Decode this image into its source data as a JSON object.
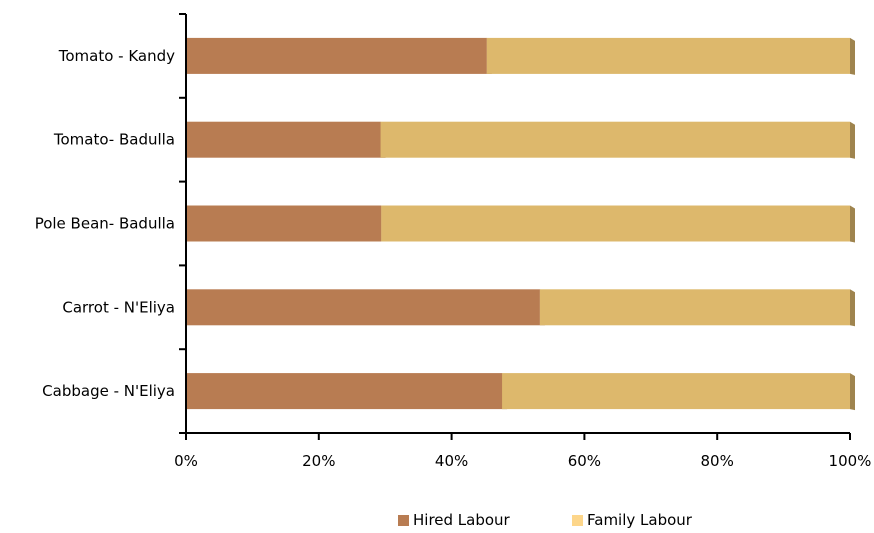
{
  "chart_data": {
    "type": "bar",
    "orientation": "horizontal",
    "stacked": "percent",
    "categories": [
      "Tomato - Kandy",
      "Tomato- Badulla",
      "Pole Bean- Badulla",
      "Carrot - N'Eliya",
      "Cabbage - N'Eliya"
    ],
    "series": [
      {
        "name": "Hired Labour",
        "values": [
          45.3,
          29.3,
          29.4,
          53.3,
          47.6
        ],
        "color": "#b87c52"
      },
      {
        "name": "Family Labour",
        "values": [
          54.7,
          70.7,
          70.6,
          46.7,
          52.4
        ],
        "color": "#ddb86c"
      }
    ],
    "xlim": [
      0,
      100
    ],
    "x_ticks": [
      "0%",
      "20%",
      "40%",
      "60%",
      "80%",
      "100%"
    ],
    "legend_position": "bottom",
    "legend_swatch_colors": [
      "#b87c52",
      "#fdd68a"
    ],
    "grid": false,
    "title": "",
    "xlabel": "",
    "ylabel": ""
  }
}
